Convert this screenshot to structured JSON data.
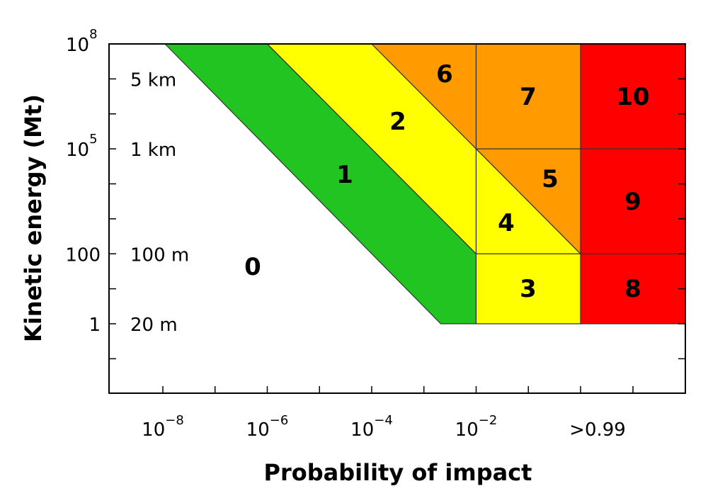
{
  "chart_data": {
    "type": "heatmap",
    "title": "",
    "xlabel": "Probability of impact",
    "ylabel": "Kinetic energy (Mt)",
    "x_scale": "log",
    "y_scale": "log",
    "x_ticks": [
      {
        "base": "10",
        "exp": "−8",
        "value": 1e-08
      },
      {
        "base": "10",
        "exp": "−6",
        "value": 1e-06
      },
      {
        "base": "10",
        "exp": "−4",
        "value": 0.0001
      },
      {
        "base": "10",
        "exp": "−2",
        "value": 0.01
      },
      {
        "base": ">0.99",
        "exp": "",
        "value": ">0.99"
      }
    ],
    "y_ticks": [
      {
        "base": "10",
        "exp": "8",
        "value": 100000000.0
      },
      {
        "base": "10",
        "exp": "5",
        "value": 100000.0
      },
      {
        "base": "100",
        "exp": "",
        "value": 100
      },
      {
        "base": "1",
        "exp": "",
        "value": 1
      }
    ],
    "size_labels": [
      {
        "text": "5 km",
        "energy_mt": 10000000.0
      },
      {
        "text": "1 km",
        "energy_mt": 100000.0
      },
      {
        "text": "100 m",
        "energy_mt": 100
      },
      {
        "text": "20 m",
        "energy_mt": 1
      }
    ],
    "colors": {
      "white": "#ffffff",
      "green": "#22c422",
      "yellow": "#ffff00",
      "orange": "#ff9a00",
      "red": "#ff0000",
      "stroke": "#333333"
    },
    "regions": [
      {
        "label": "0",
        "color": "white"
      },
      {
        "label": "1",
        "color": "green"
      },
      {
        "label": "2",
        "color": "yellow"
      },
      {
        "label": "3",
        "color": "yellow"
      },
      {
        "label": "4",
        "color": "yellow"
      },
      {
        "label": "5",
        "color": "orange"
      },
      {
        "label": "6",
        "color": "orange"
      },
      {
        "label": "7",
        "color": "orange"
      },
      {
        "label": "8",
        "color": "red"
      },
      {
        "label": "9",
        "color": "red"
      },
      {
        "label": "10",
        "color": "red"
      }
    ]
  }
}
